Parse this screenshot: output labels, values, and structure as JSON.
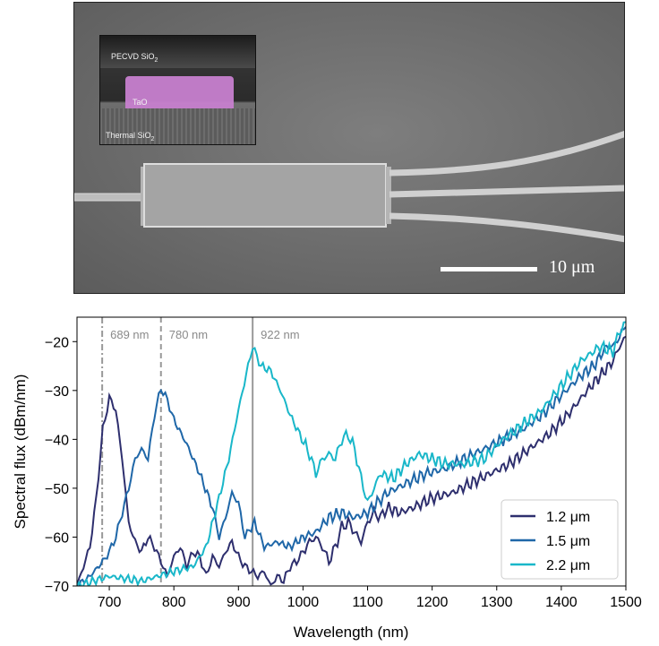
{
  "micrograph": {
    "inset_labels": {
      "top": "PECVD SiO",
      "top_sub": "2",
      "core": "TaO",
      "bottom": "Thermal SiO",
      "bottom_sub": "2"
    },
    "scale_bar_label": "10 μm",
    "core_color": "#c77fcf"
  },
  "chart_data": {
    "type": "line",
    "xlabel": "Wavelength (nm)",
    "ylabel": "Spectral flux (dBm/nm)",
    "xlim": [
      650,
      1500
    ],
    "ylim": [
      -70,
      -15
    ],
    "xticks": [
      700,
      800,
      900,
      1000,
      1100,
      1200,
      1300,
      1400,
      1500
    ],
    "yticks": [
      -70,
      -60,
      -50,
      -40,
      -30,
      -20
    ],
    "grid": false,
    "legend_position": "bottom-right",
    "reference_lines": [
      {
        "x": 689,
        "label": "689 nm",
        "style": "dashdot"
      },
      {
        "x": 780,
        "label": "780 nm",
        "style": "dashed"
      },
      {
        "x": 922,
        "label": "922 nm",
        "style": "solid"
      }
    ],
    "series": [
      {
        "name": "1.2 μm",
        "color": "#2e2f6e",
        "points": [
          [
            650,
            -70
          ],
          [
            660,
            -66
          ],
          [
            670,
            -62
          ],
          [
            680,
            -52
          ],
          [
            690,
            -38
          ],
          [
            700,
            -31.5
          ],
          [
            710,
            -34
          ],
          [
            720,
            -44
          ],
          [
            730,
            -57
          ],
          [
            740,
            -61
          ],
          [
            750,
            -63
          ],
          [
            760,
            -60
          ],
          [
            770,
            -62
          ],
          [
            780,
            -65
          ],
          [
            790,
            -68
          ],
          [
            800,
            -64
          ],
          [
            810,
            -62
          ],
          [
            820,
            -66
          ],
          [
            830,
            -63
          ],
          [
            840,
            -64
          ],
          [
            850,
            -68
          ],
          [
            860,
            -64
          ],
          [
            870,
            -66
          ],
          [
            880,
            -63
          ],
          [
            890,
            -61
          ],
          [
            900,
            -64
          ],
          [
            910,
            -66
          ],
          [
            920,
            -67
          ],
          [
            930,
            -68
          ],
          [
            940,
            -67
          ],
          [
            950,
            -70
          ],
          [
            960,
            -68
          ],
          [
            970,
            -69
          ],
          [
            980,
            -66
          ],
          [
            990,
            -65
          ],
          [
            1000,
            -63
          ],
          [
            1010,
            -61
          ],
          [
            1020,
            -60
          ],
          [
            1030,
            -62
          ],
          [
            1040,
            -65
          ],
          [
            1050,
            -62
          ],
          [
            1060,
            -58
          ],
          [
            1070,
            -57
          ],
          [
            1080,
            -59
          ],
          [
            1090,
            -61
          ],
          [
            1100,
            -57
          ],
          [
            1110,
            -55
          ],
          [
            1120,
            -56
          ],
          [
            1130,
            -54
          ],
          [
            1150,
            -55
          ],
          [
            1170,
            -54
          ],
          [
            1200,
            -52
          ],
          [
            1230,
            -51
          ],
          [
            1260,
            -49
          ],
          [
            1290,
            -47
          ],
          [
            1320,
            -45
          ],
          [
            1350,
            -42
          ],
          [
            1380,
            -39
          ],
          [
            1410,
            -35
          ],
          [
            1440,
            -30
          ],
          [
            1460,
            -27
          ],
          [
            1480,
            -24
          ],
          [
            1490,
            -21
          ],
          [
            1500,
            -19
          ]
        ]
      },
      {
        "name": "1.5 μm",
        "color": "#1f67a8",
        "points": [
          [
            650,
            -70
          ],
          [
            670,
            -68
          ],
          [
            690,
            -65
          ],
          [
            700,
            -63
          ],
          [
            710,
            -60
          ],
          [
            720,
            -55
          ],
          [
            730,
            -50
          ],
          [
            740,
            -44
          ],
          [
            750,
            -42
          ],
          [
            760,
            -44
          ],
          [
            770,
            -35
          ],
          [
            780,
            -29.5
          ],
          [
            790,
            -32
          ],
          [
            800,
            -36
          ],
          [
            820,
            -41
          ],
          [
            840,
            -47
          ],
          [
            860,
            -54
          ],
          [
            870,
            -60
          ],
          [
            880,
            -56
          ],
          [
            890,
            -51
          ],
          [
            900,
            -53
          ],
          [
            910,
            -60
          ],
          [
            920,
            -58
          ],
          [
            925,
            -57
          ],
          [
            940,
            -62
          ],
          [
            960,
            -61
          ],
          [
            980,
            -62
          ],
          [
            1000,
            -60
          ],
          [
            1020,
            -59
          ],
          [
            1040,
            -56
          ],
          [
            1060,
            -55
          ],
          [
            1080,
            -56
          ],
          [
            1100,
            -55
          ],
          [
            1130,
            -51
          ],
          [
            1160,
            -49
          ],
          [
            1190,
            -47
          ],
          [
            1220,
            -46
          ],
          [
            1250,
            -44
          ],
          [
            1280,
            -42
          ],
          [
            1310,
            -40
          ],
          [
            1340,
            -38
          ],
          [
            1370,
            -35
          ],
          [
            1400,
            -31
          ],
          [
            1430,
            -27
          ],
          [
            1450,
            -25
          ],
          [
            1470,
            -21
          ],
          [
            1480,
            -21
          ],
          [
            1490,
            -19
          ],
          [
            1500,
            -17
          ]
        ]
      },
      {
        "name": "2.2 μm",
        "color": "#19b7c9",
        "points": [
          [
            650,
            -70
          ],
          [
            700,
            -68
          ],
          [
            750,
            -69
          ],
          [
            800,
            -67
          ],
          [
            830,
            -66
          ],
          [
            850,
            -62
          ],
          [
            870,
            -52
          ],
          [
            885,
            -44
          ],
          [
            900,
            -34
          ],
          [
            915,
            -25
          ],
          [
            922,
            -21
          ],
          [
            935,
            -25
          ],
          [
            950,
            -26
          ],
          [
            965,
            -30
          ],
          [
            980,
            -35
          ],
          [
            995,
            -39
          ],
          [
            1010,
            -43
          ],
          [
            1020,
            -47
          ],
          [
            1030,
            -44
          ],
          [
            1040,
            -43
          ],
          [
            1050,
            -44
          ],
          [
            1060,
            -40
          ],
          [
            1070,
            -39
          ],
          [
            1080,
            -42
          ],
          [
            1090,
            -48
          ],
          [
            1100,
            -53
          ],
          [
            1110,
            -50
          ],
          [
            1120,
            -47
          ],
          [
            1140,
            -48
          ],
          [
            1160,
            -45
          ],
          [
            1180,
            -43
          ],
          [
            1200,
            -44
          ],
          [
            1220,
            -45
          ],
          [
            1250,
            -45
          ],
          [
            1280,
            -44
          ],
          [
            1310,
            -40
          ],
          [
            1340,
            -37
          ],
          [
            1370,
            -34
          ],
          [
            1400,
            -29
          ],
          [
            1430,
            -24
          ],
          [
            1460,
            -21
          ],
          [
            1480,
            -22
          ],
          [
            1490,
            -18
          ],
          [
            1500,
            -16
          ]
        ]
      }
    ]
  }
}
